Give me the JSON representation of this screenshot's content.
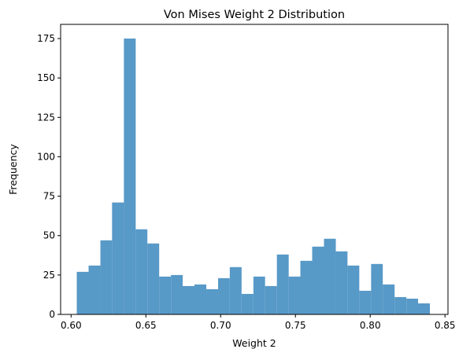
{
  "chart_data": {
    "type": "bar",
    "title": "Von Mises Weight 2 Distribution",
    "xlabel": "Weight 2",
    "ylabel": "Frequency",
    "xlim": [
      0.593,
      0.852
    ],
    "ylim": [
      0,
      184
    ],
    "xticks": [
      0.6,
      0.65,
      0.7,
      0.75,
      0.8,
      0.85
    ],
    "xtick_labels": [
      "0.60",
      "0.65",
      "0.70",
      "0.75",
      "0.80",
      "0.85"
    ],
    "yticks": [
      0,
      25,
      50,
      75,
      100,
      125,
      150,
      175
    ],
    "ytick_labels": [
      "0",
      "25",
      "50",
      "75",
      "100",
      "125",
      "150",
      "175"
    ],
    "bin_edges": [
      0.6038,
      0.6117,
      0.6196,
      0.6274,
      0.6353,
      0.6432,
      0.651,
      0.6589,
      0.6668,
      0.6746,
      0.6825,
      0.6904,
      0.6983,
      0.7061,
      0.714,
      0.7219,
      0.7297,
      0.7376,
      0.7455,
      0.7533,
      0.7612,
      0.7691,
      0.777,
      0.7848,
      0.7927,
      0.8006,
      0.8084,
      0.8163,
      0.8242,
      0.832,
      0.8399
    ],
    "values": [
      27,
      31,
      47,
      71,
      175,
      54,
      45,
      24,
      25,
      18,
      19,
      16,
      23,
      30,
      13,
      24,
      18,
      38,
      24,
      34,
      43,
      48,
      40,
      31,
      15,
      32,
      19,
      11,
      10,
      7
    ],
    "bar_color": "#5799c7",
    "grid": false,
    "legend": false
  }
}
